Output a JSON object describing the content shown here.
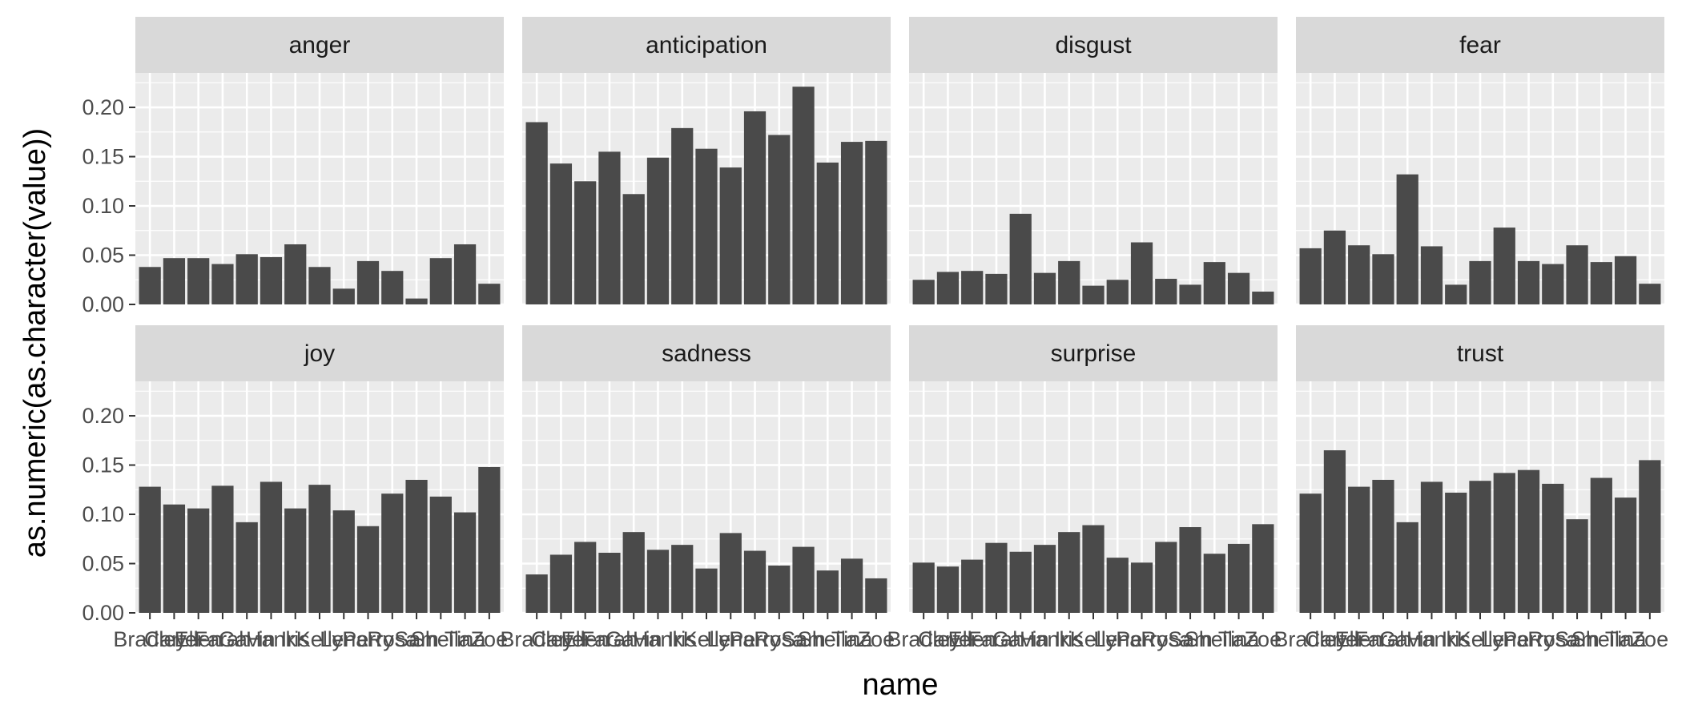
{
  "chart_data": {
    "type": "bar",
    "xlabel": "name",
    "ylabel": "as.numeric(as.character(value))",
    "ylim": [
      0,
      0.235
    ],
    "y_ticks": [
      0.0,
      0.05,
      0.1,
      0.15,
      0.2
    ],
    "y_tick_labels": [
      "0.00",
      "0.05",
      "0.10",
      "0.15",
      "0.20"
    ],
    "grid": true,
    "categories": [
      "Bradley",
      "Carter",
      "Ellen",
      "Farah",
      "Gavin",
      "Hank",
      "Iris",
      "Kelly",
      "Lena",
      "Perry",
      "Rosa",
      "Sam",
      "Sheila",
      "Tina",
      "Zoe"
    ],
    "panels": [
      {
        "name": "anger",
        "values": [
          0.038,
          0.047,
          0.047,
          0.041,
          0.051,
          0.048,
          0.061,
          0.038,
          0.016,
          0.044,
          0.034,
          0.006,
          0.047,
          0.061,
          0.021
        ]
      },
      {
        "name": "anticipation",
        "values": [
          0.185,
          0.143,
          0.125,
          0.155,
          0.112,
          0.149,
          0.179,
          0.158,
          0.139,
          0.196,
          0.172,
          0.221,
          0.144,
          0.165,
          0.166
        ]
      },
      {
        "name": "disgust",
        "values": [
          0.025,
          0.033,
          0.034,
          0.031,
          0.092,
          0.032,
          0.044,
          0.019,
          0.025,
          0.063,
          0.026,
          0.02,
          0.043,
          0.032,
          0.013
        ]
      },
      {
        "name": "fear",
        "values": [
          0.057,
          0.075,
          0.06,
          0.051,
          0.132,
          0.059,
          0.02,
          0.044,
          0.078,
          0.044,
          0.041,
          0.06,
          0.043,
          0.049,
          0.021
        ]
      },
      {
        "name": "joy",
        "values": [
          0.128,
          0.11,
          0.106,
          0.129,
          0.092,
          0.133,
          0.106,
          0.13,
          0.104,
          0.088,
          0.121,
          0.135,
          0.118,
          0.102,
          0.148
        ]
      },
      {
        "name": "sadness",
        "values": [
          0.039,
          0.059,
          0.072,
          0.061,
          0.082,
          0.064,
          0.069,
          0.045,
          0.081,
          0.063,
          0.048,
          0.067,
          0.043,
          0.055,
          0.035
        ]
      },
      {
        "name": "surprise",
        "values": [
          0.051,
          0.047,
          0.054,
          0.071,
          0.062,
          0.069,
          0.082,
          0.089,
          0.056,
          0.051,
          0.072,
          0.087,
          0.06,
          0.07,
          0.09
        ]
      },
      {
        "name": "trust",
        "values": [
          0.121,
          0.165,
          0.128,
          0.135,
          0.092,
          0.133,
          0.122,
          0.134,
          0.142,
          0.145,
          0.131,
          0.095,
          0.137,
          0.117,
          0.155
        ]
      }
    ],
    "colors": {
      "bar": "#4a4a4a",
      "panel_bg": "#ebebeb",
      "strip_bg": "#d9d9d9",
      "grid": "#ffffff",
      "text": "#1a1a1a",
      "tick": "#333333"
    }
  }
}
